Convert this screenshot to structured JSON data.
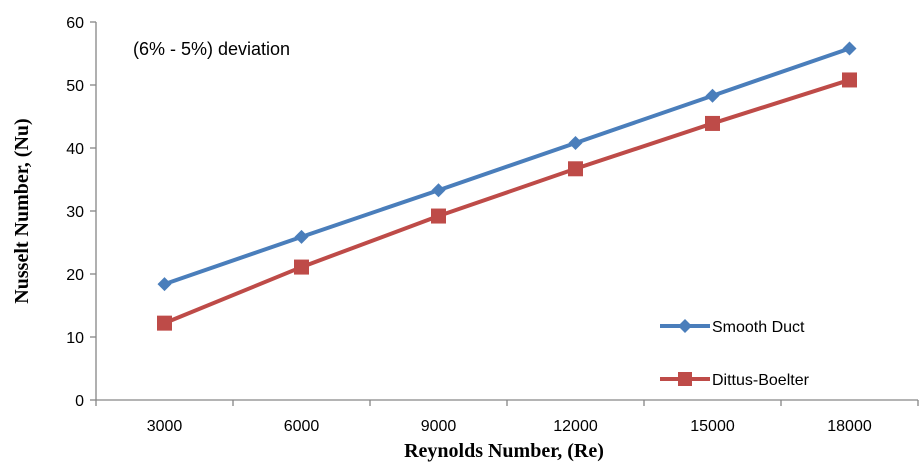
{
  "chart_data": {
    "type": "line",
    "title": "",
    "annotation": "(6% - 5%) deviation",
    "xlabel": "Reynolds Number, (Re)",
    "ylabel": "Nusselt Number, (Nu)",
    "categories": [
      "3000",
      "6000",
      "9000",
      "12000",
      "15000",
      "18000"
    ],
    "ylim": [
      0,
      60
    ],
    "yticks": [
      "0",
      "10",
      "20",
      "30",
      "40",
      "50",
      "60"
    ],
    "grid": false,
    "legend_position": "bottom-right",
    "series": [
      {
        "name": "Smooth Duct",
        "values": [
          18.4,
          25.9,
          33.3,
          40.8,
          48.3,
          55.8
        ],
        "color": "#4A7EBB",
        "marker": "diamond"
      },
      {
        "name": "Dittus-Boelter",
        "values": [
          12.2,
          21.1,
          29.2,
          36.7,
          43.9,
          50.8
        ],
        "color": "#BE4B48",
        "marker": "square"
      }
    ]
  }
}
